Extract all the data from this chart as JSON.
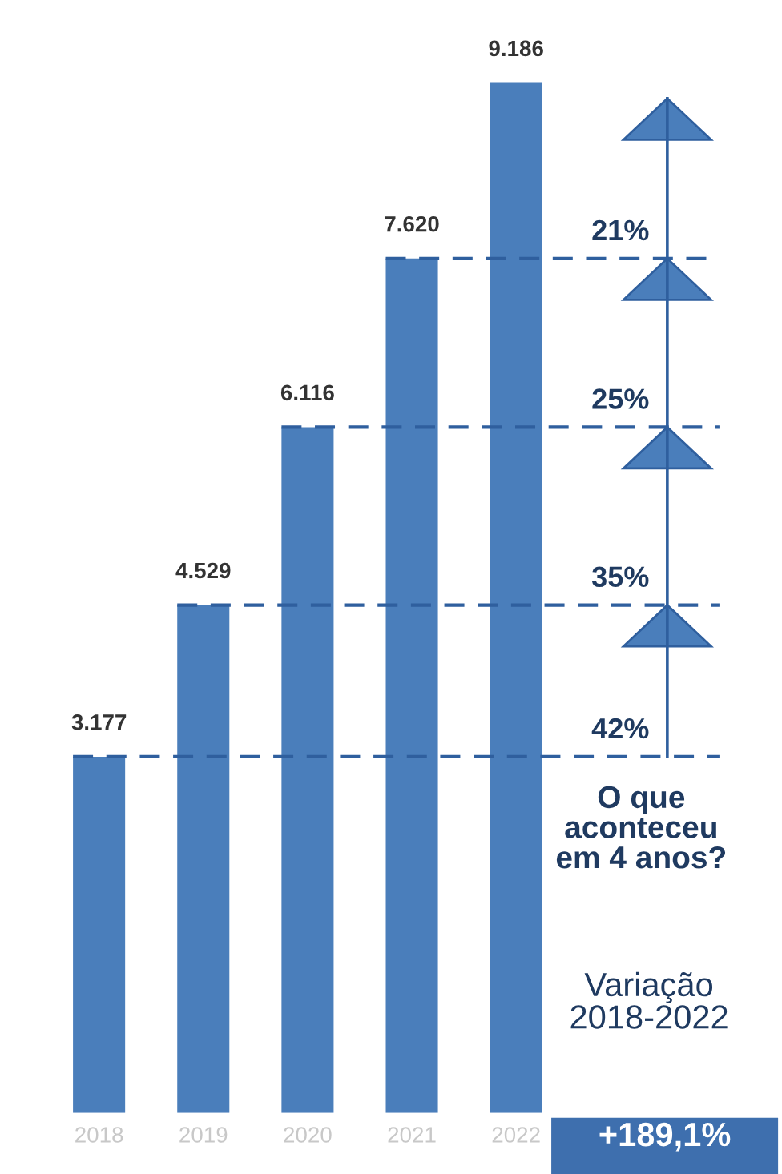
{
  "chart_data": {
    "type": "bar",
    "categories": [
      "2018",
      "2019",
      "2020",
      "2021",
      "2022"
    ],
    "values": [
      3177,
      4529,
      6116,
      7620,
      9186
    ],
    "value_labels": [
      "3.177",
      "4.529",
      "6.116",
      "7.620",
      "9.186"
    ],
    "color": "#4a7ebb",
    "ref_lines": [
      {
        "axis": "y",
        "value": 3177,
        "color": "#2f5f9e",
        "line_style": "dashed"
      },
      {
        "axis": "y",
        "value": 4529,
        "color": "#2f5f9e",
        "line_style": "dashed"
      },
      {
        "axis": "y",
        "value": 6116,
        "color": "#2f5f9e",
        "line_style": "dashed"
      },
      {
        "axis": "y",
        "value": 7620,
        "color": "#2f5f9e",
        "line_style": "dashed"
      }
    ],
    "annotations": [
      "42%",
      "35%",
      "25%",
      "21%",
      "O que\naconteceu\nem 4 anos?",
      "Variação\n2018-2022",
      "+189,1%"
    ],
    "grid": false
  }
}
